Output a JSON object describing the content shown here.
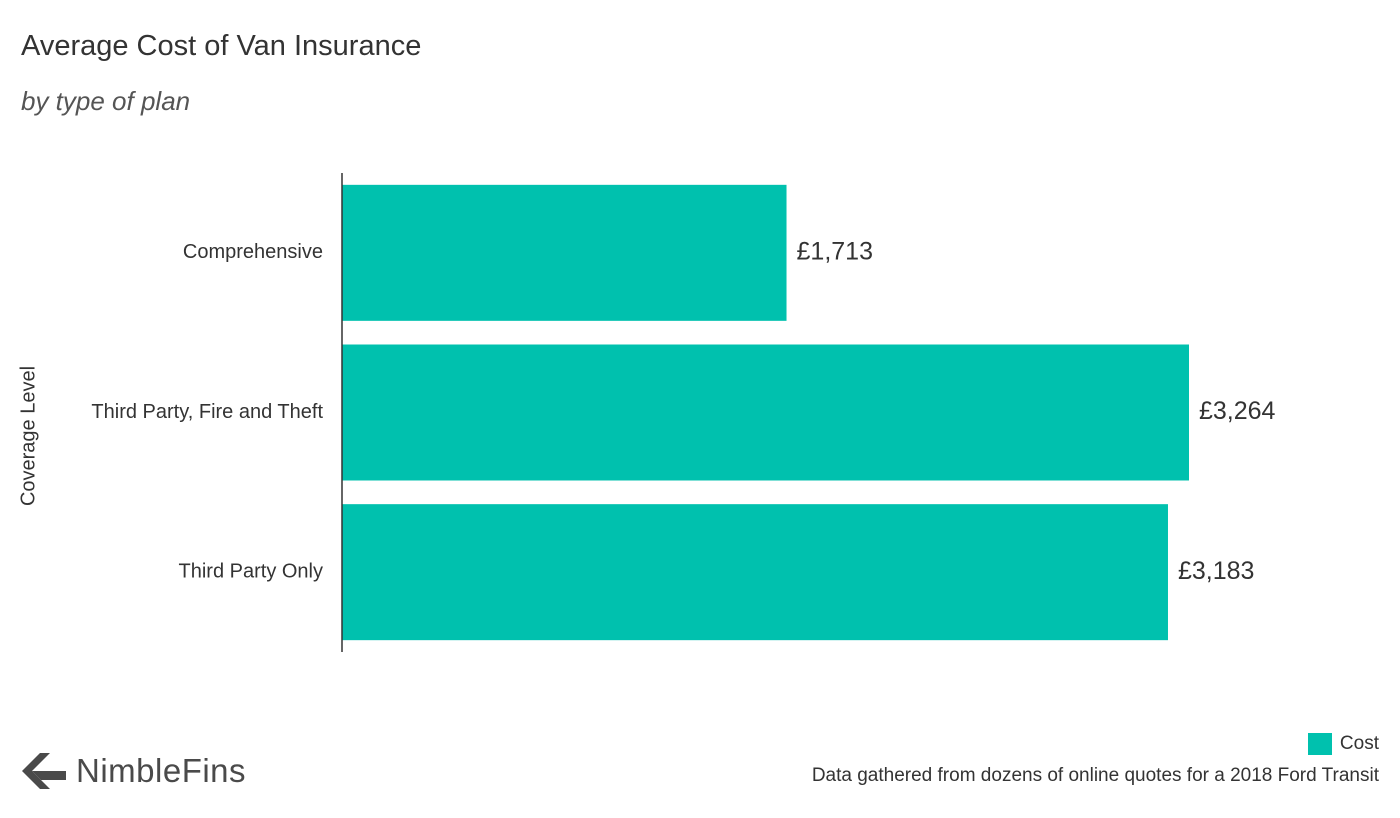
{
  "title": "Average Cost of Van Insurance",
  "subtitle": "by type of plan",
  "brand": "NimbleFins",
  "source_note": "Data gathered from dozens of online quotes for a 2018 Ford Transit",
  "colors": {
    "bar": "#00c1ae",
    "axis": "#333333"
  },
  "icons": {
    "logo": "nimblefins-arrow-icon"
  },
  "chart_data": {
    "type": "bar",
    "orientation": "horizontal",
    "title": "Average Cost of Van Insurance",
    "subtitle": "by type of plan",
    "ylabel": "Coverage Level",
    "xlabel": "",
    "categories": [
      "Comprehensive",
      "Third Party, Fire and Theft",
      "Third Party Only"
    ],
    "series": [
      {
        "name": "Cost",
        "values": [
          1713,
          3264,
          3183
        ],
        "labels": [
          "£1,713",
          "£3,264",
          "£3,183"
        ]
      }
    ],
    "xlim": [
      0,
      3264
    ],
    "grid": false,
    "legend": "bottom-right"
  }
}
